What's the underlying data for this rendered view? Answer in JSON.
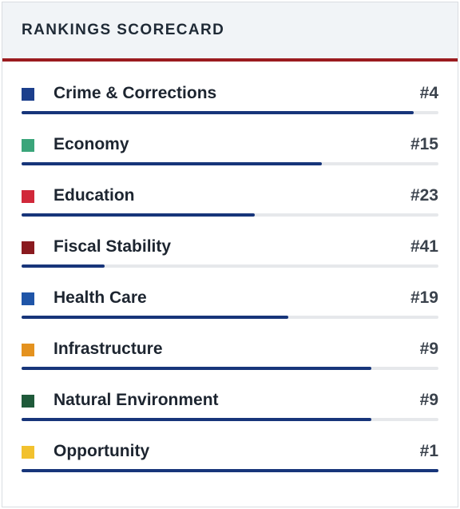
{
  "header": {
    "title": "RANKINGS SCORECARD"
  },
  "items": [
    {
      "label": "Crime & Corrections",
      "rank": "#4",
      "color": "#1c3f8c",
      "score": 0.94
    },
    {
      "label": "Economy",
      "rank": "#15",
      "color": "#3aa57a",
      "score": 0.72
    },
    {
      "label": "Education",
      "rank": "#23",
      "color": "#d1283a",
      "score": 0.56
    },
    {
      "label": "Fiscal Stability",
      "rank": "#41",
      "color": "#8a1a1f",
      "score": 0.2
    },
    {
      "label": "Health Care",
      "rank": "#19",
      "color": "#1f55a8",
      "score": 0.64
    },
    {
      "label": "Infrastructure",
      "rank": "#9",
      "color": "#e4921f",
      "score": 0.84
    },
    {
      "label": "Natural Environment",
      "rank": "#9",
      "color": "#1f5a3a",
      "score": 0.84
    },
    {
      "label": "Opportunity",
      "rank": "#1",
      "color": "#f2c12e",
      "score": 1.0
    }
  ]
}
